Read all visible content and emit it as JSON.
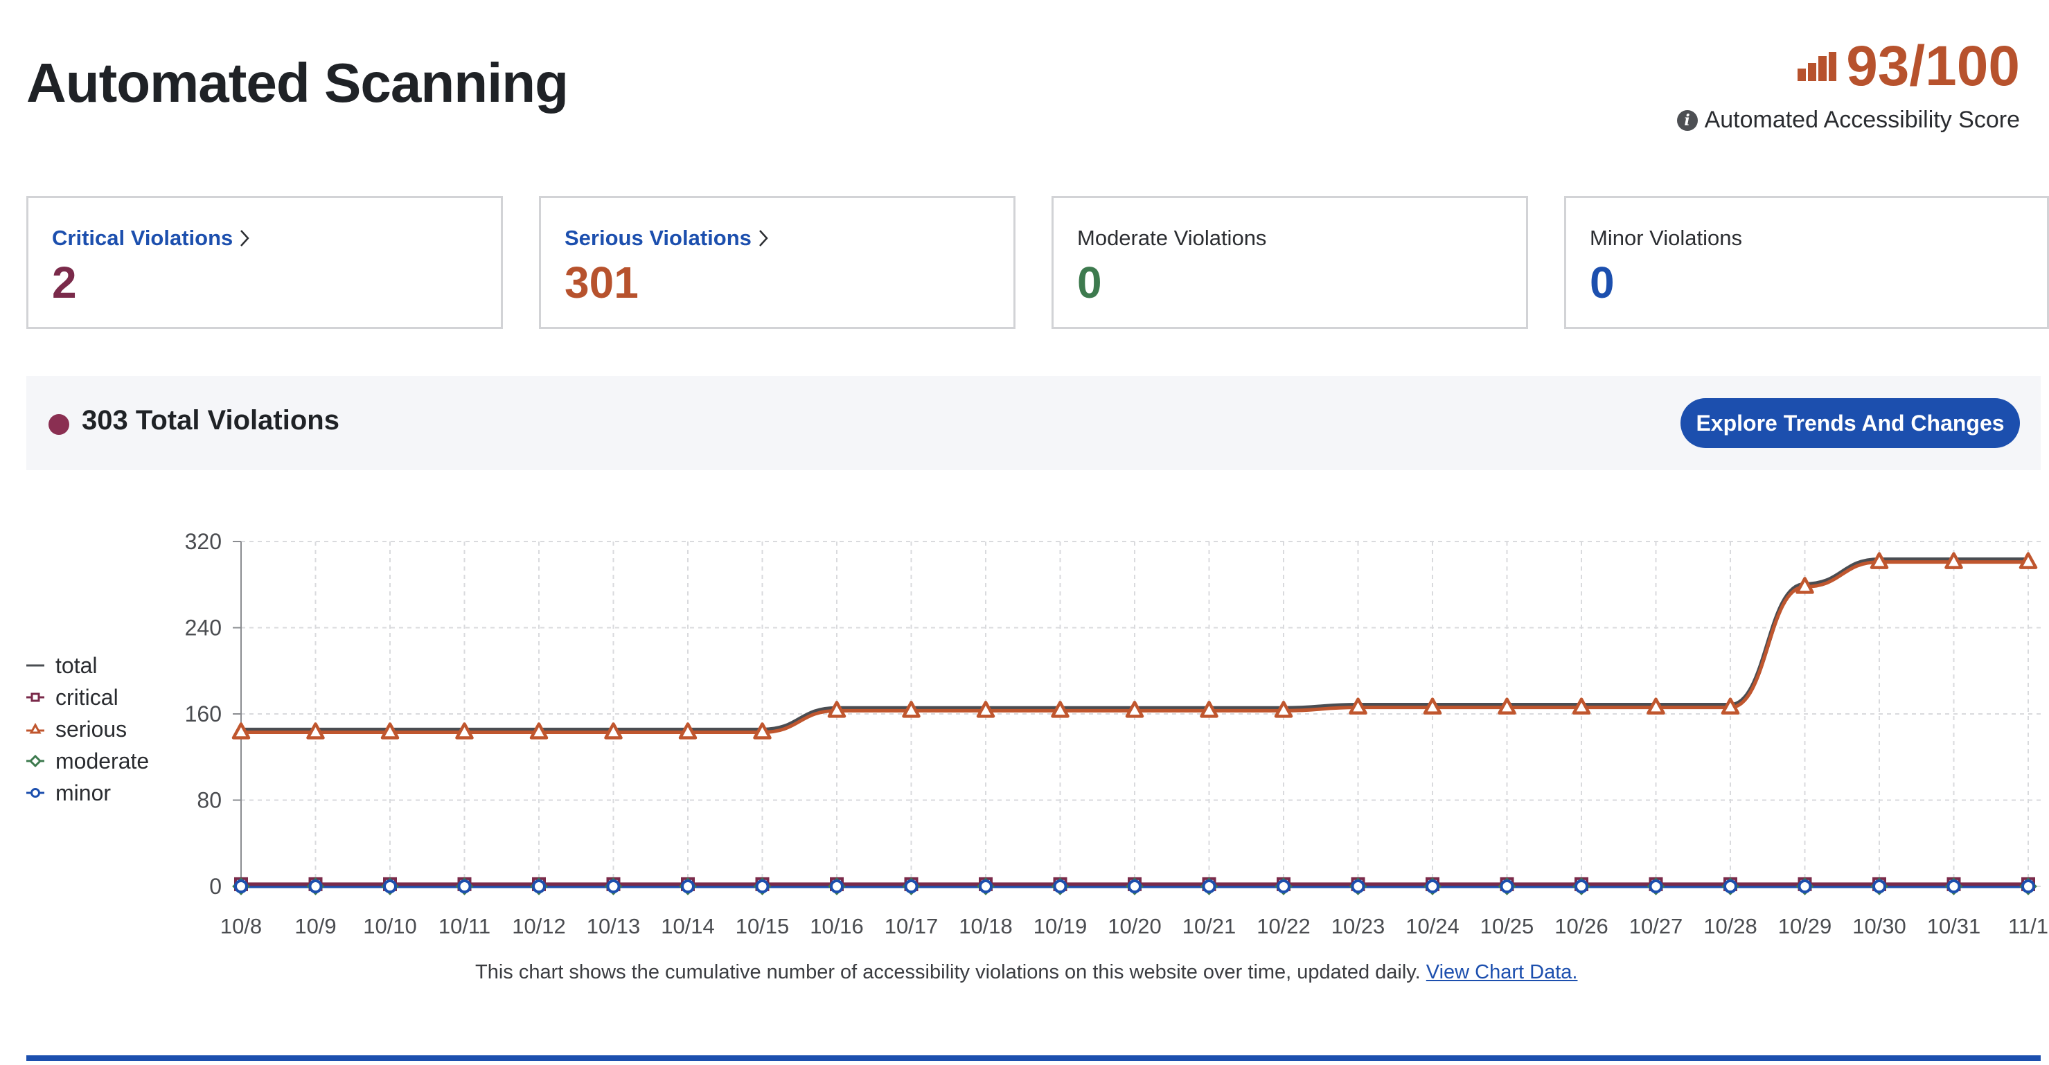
{
  "page": {
    "title": "Automated Scanning"
  },
  "score": {
    "value": "93/100",
    "label": "Automated Accessibility Score",
    "icon": "bar-chart-icon",
    "info_icon": "info-icon",
    "color": "#b7522d"
  },
  "cards": [
    {
      "label": "Critical Violations",
      "count": "2",
      "link": true,
      "color": "#7a2a4a"
    },
    {
      "label": "Serious Violations",
      "count": "301",
      "link": true,
      "color": "#b7522d"
    },
    {
      "label": "Moderate Violations",
      "count": "0",
      "link": false,
      "color": "#3d7a4e"
    },
    {
      "label": "Minor Violations",
      "count": "0",
      "link": false,
      "color": "#1c4fae"
    }
  ],
  "summary": {
    "title": "303 Total Violations",
    "button_label": "Explore Trends And Changes"
  },
  "chart_data": {
    "type": "line",
    "x": [
      "10/8",
      "10/9",
      "10/10",
      "10/11",
      "10/12",
      "10/13",
      "10/14",
      "10/15",
      "10/16",
      "10/17",
      "10/18",
      "10/19",
      "10/20",
      "10/21",
      "10/22",
      "10/23",
      "10/24",
      "10/25",
      "10/26",
      "10/27",
      "10/28",
      "10/29",
      "10/30",
      "10/31",
      "11/1"
    ],
    "series": [
      {
        "name": "total",
        "color": "#4a4d52",
        "marker": "none",
        "values": [
          145,
          145,
          145,
          145,
          145,
          145,
          145,
          145,
          165,
          165,
          165,
          165,
          165,
          165,
          165,
          168,
          168,
          168,
          168,
          168,
          168,
          280,
          303,
          303,
          303
        ]
      },
      {
        "name": "critical",
        "color": "#7a2a4a",
        "marker": "square",
        "values": [
          2,
          2,
          2,
          2,
          2,
          2,
          2,
          2,
          2,
          2,
          2,
          2,
          2,
          2,
          2,
          2,
          2,
          2,
          2,
          2,
          2,
          2,
          2,
          2,
          2
        ]
      },
      {
        "name": "serious",
        "color": "#c0562e",
        "marker": "triangle",
        "values": [
          143,
          143,
          143,
          143,
          143,
          143,
          143,
          143,
          163,
          163,
          163,
          163,
          163,
          163,
          163,
          166,
          166,
          166,
          166,
          166,
          166,
          278,
          301,
          301,
          301
        ]
      },
      {
        "name": "moderate",
        "color": "#3d7a4e",
        "marker": "diamond",
        "values": [
          0,
          0,
          0,
          0,
          0,
          0,
          0,
          0,
          0,
          0,
          0,
          0,
          0,
          0,
          0,
          0,
          0,
          0,
          0,
          0,
          0,
          0,
          0,
          0,
          0
        ]
      },
      {
        "name": "minor",
        "color": "#1c4fae",
        "marker": "circle",
        "values": [
          0,
          0,
          0,
          0,
          0,
          0,
          0,
          0,
          0,
          0,
          0,
          0,
          0,
          0,
          0,
          0,
          0,
          0,
          0,
          0,
          0,
          0,
          0,
          0,
          0
        ]
      }
    ],
    "y_ticks": [
      0,
      80,
      160,
      240,
      320
    ],
    "ylim": [
      0,
      320
    ],
    "grid": true,
    "legend_position": "left",
    "caption": "This chart shows the cumulative number of accessibility violations on this website over time, updated daily.",
    "caption_link": "View Chart Data."
  }
}
